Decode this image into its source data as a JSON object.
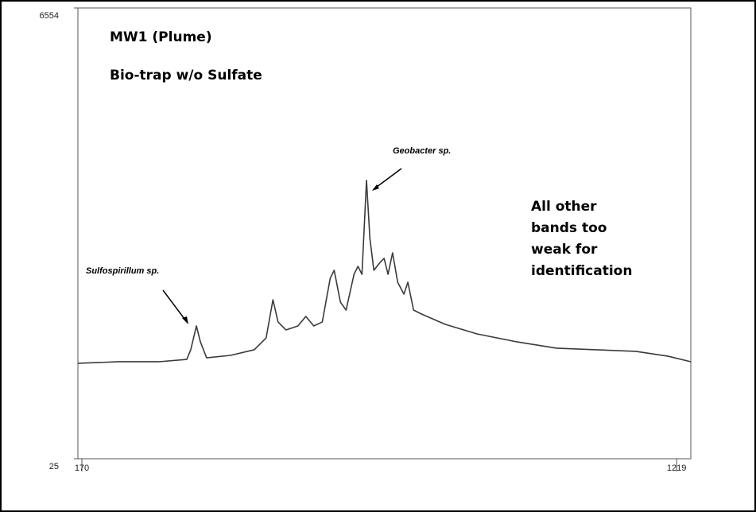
{
  "chart_data": {
    "type": "line",
    "title": "MW1 (Plume)",
    "subtitle": "Bio-trap w/o Sulfate",
    "annotations": [
      "Geobacter sp.",
      "Sulfospirillum sp.",
      "All other",
      "bands too",
      "weak for",
      "identification"
    ],
    "x": [
      163,
      236,
      306,
      355,
      362,
      372,
      379,
      390,
      432,
      474,
      495,
      507,
      516,
      530,
      551,
      565,
      579,
      594,
      608,
      615,
      626,
      636,
      650,
      657,
      664,
      672,
      678,
      685,
      696,
      703,
      710,
      718,
      727,
      738,
      745,
      755,
      769,
      811,
      867,
      937,
      1007,
      1077,
      1147,
      1204,
      1244
    ],
    "series": [
      {
        "color": "#3a3a3a",
        "values": [
          1407,
          1430,
          1430,
          1464,
          1603,
          1948,
          1718,
          1487,
          1522,
          1603,
          1775,
          2328,
          2006,
          1890,
          1948,
          2086,
          1948,
          2006,
          2639,
          2754,
          2293,
          2178,
          2696,
          2812,
          2696,
          4058,
          3215,
          2754,
          2869,
          2927,
          2696,
          3007,
          2581,
          2409,
          2581,
          2178,
          2121,
          1971,
          1833,
          1718,
          1626,
          1603,
          1580,
          1510,
          1430
        ]
      }
    ],
    "xlim": [
      163,
      1244
    ],
    "xticks": [
      170,
      1219
    ],
    "ylim": [
      25,
      6554
    ],
    "yticks": [
      25,
      6554
    ]
  }
}
